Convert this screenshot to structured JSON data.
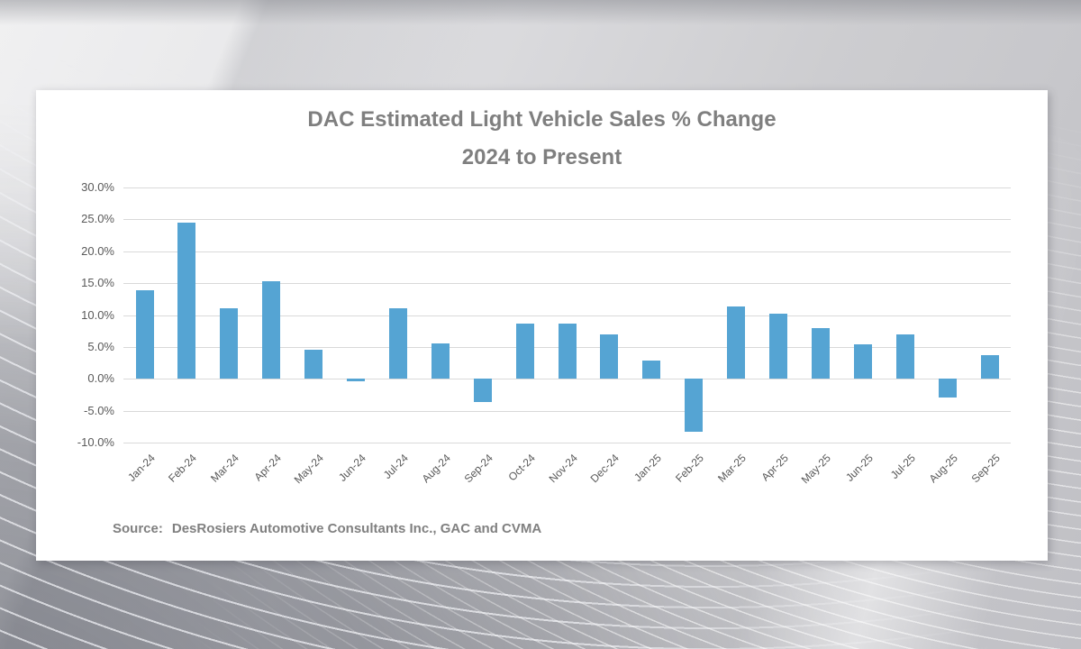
{
  "source": {
    "label": "Source:",
    "text": "DesRosiers Automotive Consultants Inc., GAC and CVMA"
  },
  "chart_data": {
    "type": "bar",
    "title": "DAC Estimated Light Vehicle Sales % Change",
    "subtitle": "2024 to Present",
    "categories": [
      "Jan-24",
      "Feb-24",
      "Mar-24",
      "Apr-24",
      "May-24",
      "Jun-24",
      "Jul-24",
      "Aug-24",
      "Sep-24",
      "Oct-24",
      "Nov-24",
      "Dec-24",
      "Jan-25",
      "Feb-25",
      "Mar-25",
      "Apr-25",
      "May-25",
      "Jun-25",
      "Jul-25",
      "Aug-25",
      "Sep-25"
    ],
    "values": [
      13.9,
      24.5,
      11.0,
      15.3,
      4.6,
      -0.4,
      11.0,
      5.5,
      -3.6,
      8.7,
      8.7,
      7.0,
      2.9,
      -8.3,
      11.4,
      10.2,
      8.0,
      5.4,
      7.0,
      -2.9,
      3.7
    ],
    "unit": "%",
    "xlabel": "",
    "ylabel": "",
    "ylim": [
      -10,
      30
    ],
    "yticks": [
      30,
      25,
      20,
      15,
      10,
      5,
      0,
      -5,
      -10
    ],
    "ytick_format": "one_decimal_percent",
    "grid": true,
    "legend": false,
    "bar_color": "#55a4d3",
    "tick_label_color": "#595959",
    "title_color": "#7f7f7f"
  }
}
